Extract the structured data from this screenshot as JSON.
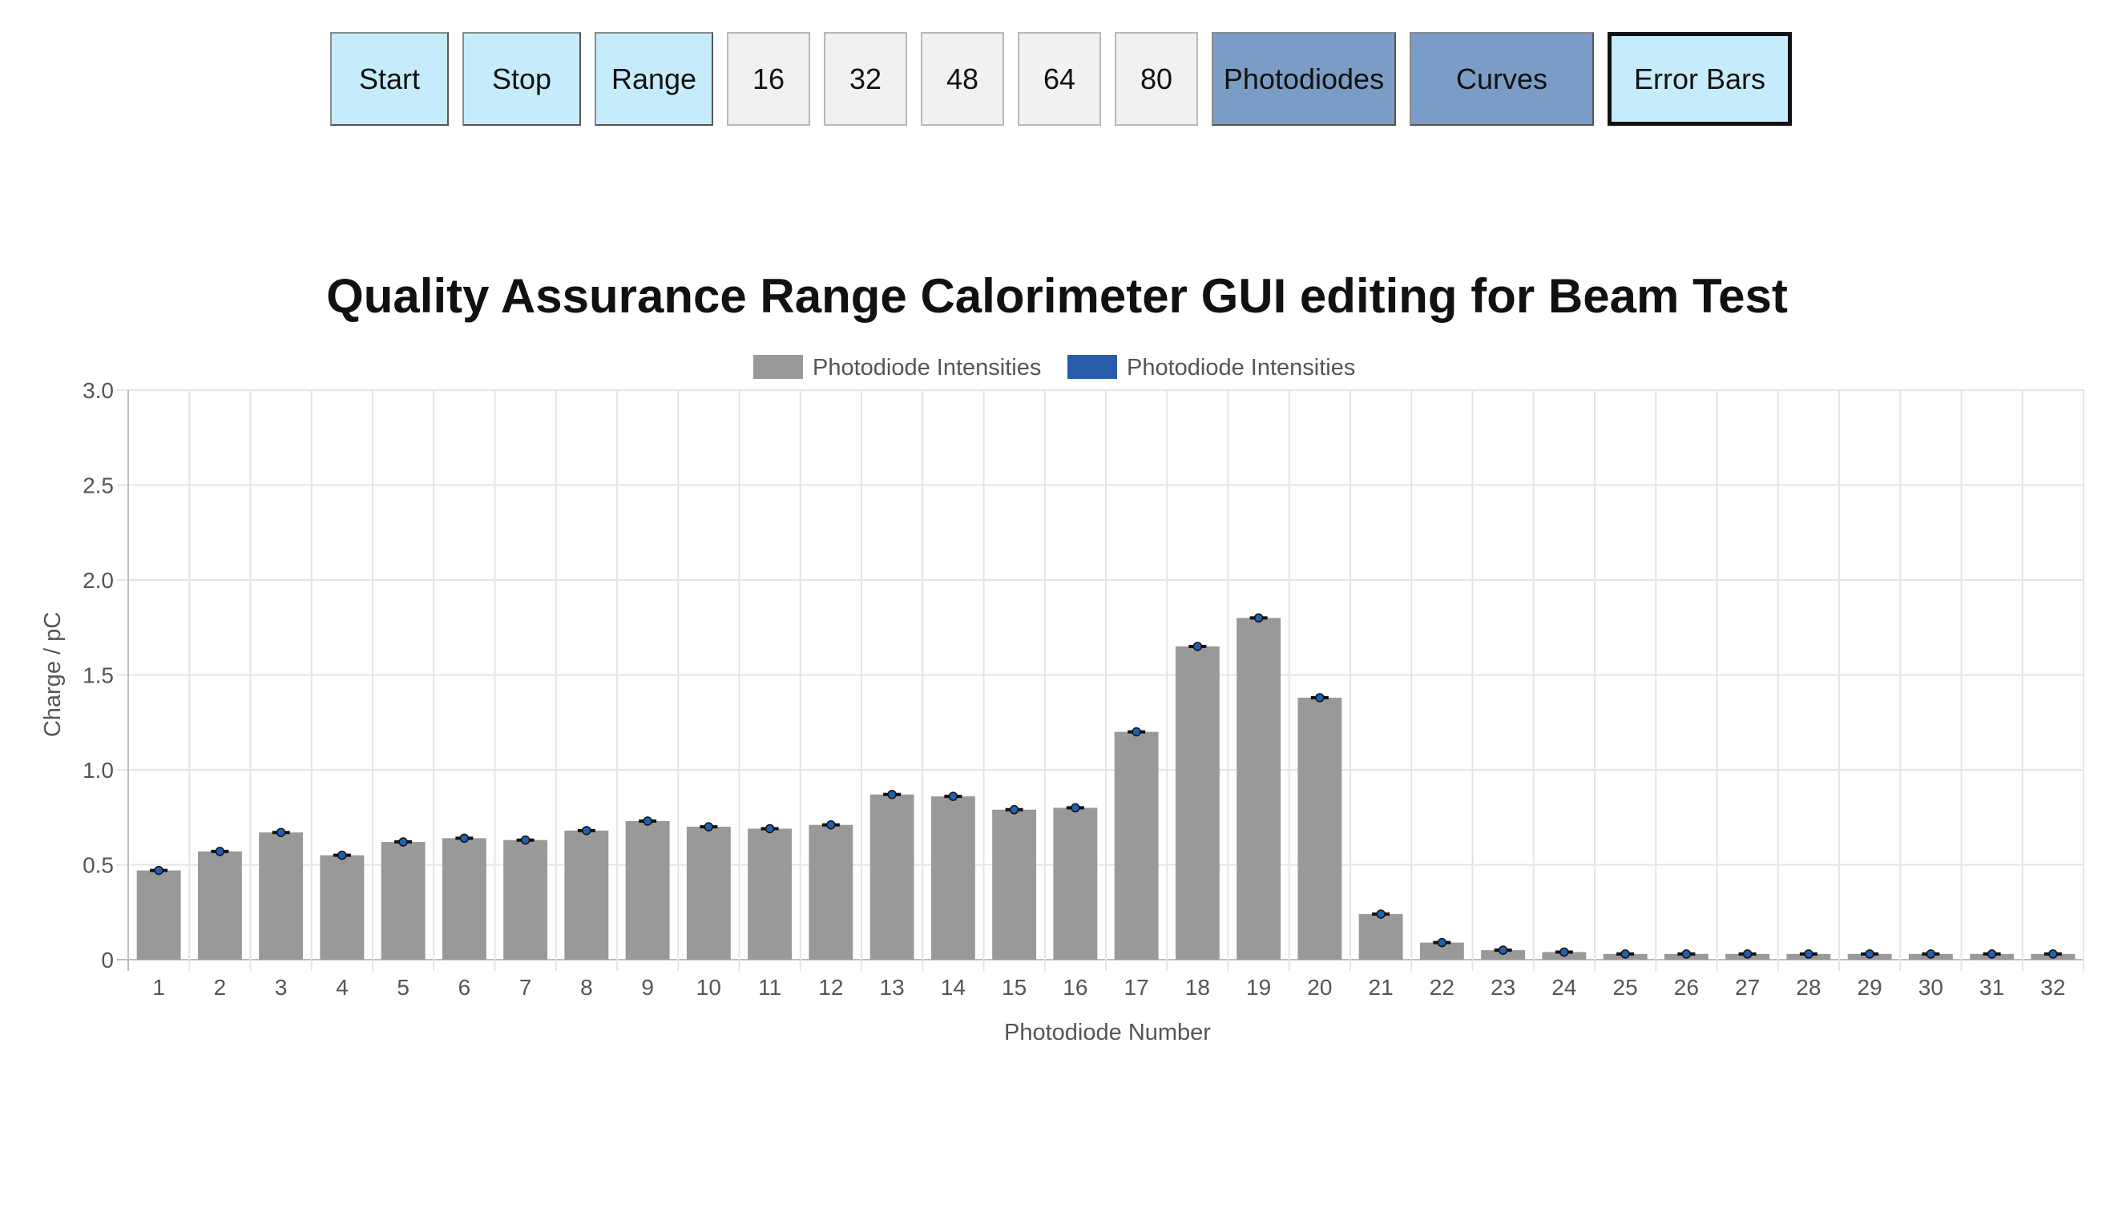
{
  "toolbar": {
    "buttons": [
      {
        "label": "Start",
        "style": "light"
      },
      {
        "label": "Stop",
        "style": "light"
      },
      {
        "label": "Range",
        "style": "light"
      },
      {
        "label": "16",
        "style": "grey"
      },
      {
        "label": "32",
        "style": "grey"
      },
      {
        "label": "48",
        "style": "grey"
      },
      {
        "label": "64",
        "style": "grey"
      },
      {
        "label": "80",
        "style": "grey"
      },
      {
        "label": "Photodiodes",
        "style": "steel"
      },
      {
        "label": "Curves",
        "style": "steel"
      },
      {
        "label": "Error Bars",
        "style": "active"
      }
    ]
  },
  "colors": {
    "bar_fill": "#999999",
    "legend_series_2": "#2a5cac",
    "error_bar": "#111111",
    "error_point": "#1f5fb4",
    "grid": "#e5e5e5",
    "btn_light": "#c6ecfb",
    "btn_grey": "#f1f1f1",
    "btn_steel": "#7b9cc6"
  },
  "chart_data": {
    "type": "bar",
    "title": "Quality Assurance Range Calorimeter GUI editing for Beam Test",
    "xlabel": "Photodiode Number",
    "ylabel": "Charge / pC",
    "ylim": [
      0,
      3.0
    ],
    "yticks": [
      "0",
      "0.5",
      "1.0",
      "1.5",
      "2.0",
      "2.5",
      "3.0"
    ],
    "grid": true,
    "legend_position": "top-center",
    "legend": [
      {
        "label": "Photodiode Intensities",
        "color": "#999999"
      },
      {
        "label": "Photodiode Intensities",
        "color": "#2a5cac"
      }
    ],
    "categories": [
      "1",
      "2",
      "3",
      "4",
      "5",
      "6",
      "7",
      "8",
      "9",
      "10",
      "11",
      "12",
      "13",
      "14",
      "15",
      "16",
      "17",
      "18",
      "19",
      "20",
      "21",
      "22",
      "23",
      "24",
      "25",
      "26",
      "27",
      "28",
      "29",
      "30",
      "31",
      "32"
    ],
    "series": [
      {
        "name": "Photodiode Intensities",
        "values": [
          0.47,
          0.57,
          0.67,
          0.55,
          0.62,
          0.64,
          0.63,
          0.68,
          0.73,
          0.7,
          0.69,
          0.71,
          0.87,
          0.86,
          0.79,
          0.8,
          1.2,
          1.65,
          1.8,
          1.38,
          0.24,
          0.09,
          0.05,
          0.04,
          0.03,
          0.03,
          0.03,
          0.03,
          0.03,
          0.03,
          0.03,
          0.03
        ]
      },
      {
        "name": "Photodiode Intensities",
        "values": [
          0.47,
          0.57,
          0.67,
          0.55,
          0.62,
          0.64,
          0.63,
          0.68,
          0.73,
          0.7,
          0.69,
          0.71,
          0.87,
          0.86,
          0.79,
          0.8,
          1.2,
          1.65,
          1.8,
          1.38,
          0.24,
          0.09,
          0.05,
          0.04,
          0.03,
          0.03,
          0.03,
          0.03,
          0.03,
          0.03,
          0.03,
          0.03
        ]
      }
    ]
  }
}
